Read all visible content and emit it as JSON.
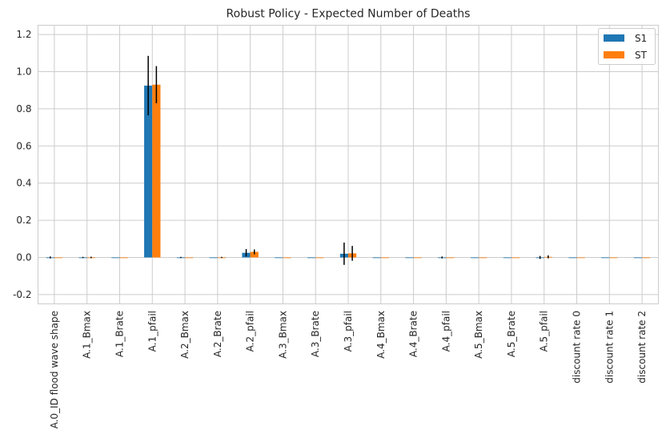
{
  "chart_data": {
    "type": "bar",
    "title": "Robust Policy - Expected Number of Deaths",
    "xlabel": "",
    "ylabel": "",
    "ylim": [
      -0.25,
      1.25
    ],
    "yticks": [
      -0.2,
      0.0,
      0.2,
      0.4,
      0.6,
      0.8,
      1.0,
      1.2
    ],
    "grid": true,
    "legend_position": "top-right",
    "categories": [
      "A.0_ID flood wave shape",
      "A.1_Bmax",
      "A.1_Brate",
      "A.1_pfail",
      "A.2_Bmax",
      "A.2_Brate",
      "A.2_pfail",
      "A.3_Bmax",
      "A.3_Brate",
      "A.3_pfail",
      "A.4_Bmax",
      "A.4_Brate",
      "A.4_pfail",
      "A.5_Bmax",
      "A.5_Brate",
      "A.5_pfail",
      "discount rate 0",
      "discount rate 1",
      "discount rate 2"
    ],
    "series": [
      {
        "name": "S1",
        "color": "#1f77b4",
        "values": [
          0.0,
          0.0,
          0.0,
          0.925,
          0.0,
          0.0,
          0.025,
          0.0,
          0.0,
          0.02,
          0.0,
          0.0,
          0.0,
          0.0,
          0.0,
          0.0,
          0.0,
          0.0,
          0.0
        ],
        "errors": [
          0.005,
          0.003,
          0.0,
          0.16,
          0.003,
          0.0,
          0.02,
          0.0,
          0.0,
          0.06,
          0.0,
          0.0,
          0.005,
          0.0,
          0.0,
          0.008,
          0.0,
          0.0,
          0.0
        ]
      },
      {
        "name": "ST",
        "color": "#ff7f0e",
        "values": [
          0.0,
          0.0,
          0.0,
          0.93,
          0.0,
          0.0,
          0.03,
          0.0,
          0.0,
          0.022,
          0.0,
          0.0,
          0.0,
          0.0,
          0.0,
          0.003,
          0.0,
          0.0,
          0.0
        ],
        "errors": [
          0.0,
          0.004,
          0.0,
          0.1,
          0.0,
          0.003,
          0.013,
          0.0,
          0.0,
          0.04,
          0.0,
          0.0,
          0.0,
          0.0,
          0.0,
          0.008,
          0.0,
          0.0,
          0.0
        ]
      }
    ]
  }
}
